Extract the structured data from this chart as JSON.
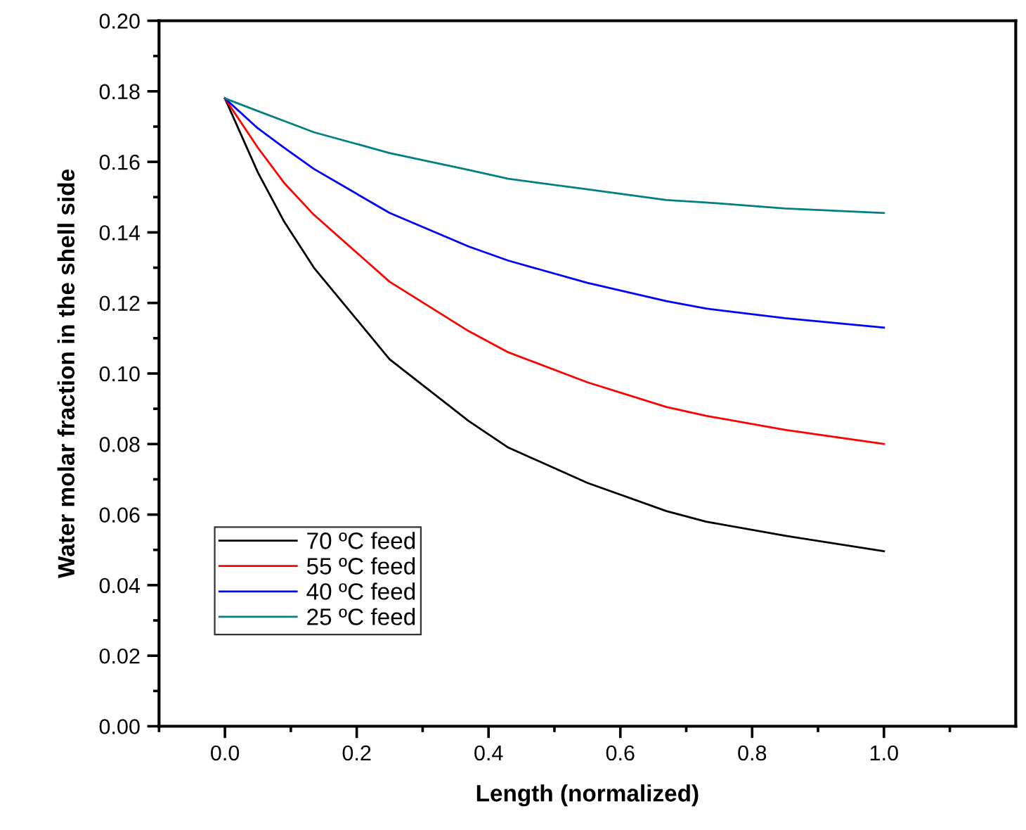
{
  "chart_data": {
    "type": "line",
    "xlabel": "Length (normalized)",
    "ylabel": "Water molar fraction in the shell side",
    "xlim": [
      -0.1,
      1.2
    ],
    "ylim": [
      0,
      0.2
    ],
    "xticks": [
      {
        "value": -0.1,
        "label": null
      },
      {
        "value": 0,
        "label": "0.0"
      },
      {
        "value": 0.1,
        "label": null
      },
      {
        "value": 0.2,
        "label": "0.2"
      },
      {
        "value": 0.3,
        "label": null
      },
      {
        "value": 0.4,
        "label": "0.4"
      },
      {
        "value": 0.5,
        "label": null
      },
      {
        "value": 0.6,
        "label": "0.6"
      },
      {
        "value": 0.7,
        "label": null
      },
      {
        "value": 0.8,
        "label": "0.8"
      },
      {
        "value": 0.9,
        "label": null
      },
      {
        "value": 1.0,
        "label": "1.0"
      },
      {
        "value": 1.1,
        "label": null
      }
    ],
    "yticks": [
      {
        "value": 0,
        "label": "0.00"
      },
      {
        "value": 0.01,
        "label": null
      },
      {
        "value": 0.02,
        "label": "0.02"
      },
      {
        "value": 0.03,
        "label": null
      },
      {
        "value": 0.04,
        "label": "0.04"
      },
      {
        "value": 0.05,
        "label": null
      },
      {
        "value": 0.06,
        "label": "0.06"
      },
      {
        "value": 0.07,
        "label": null
      },
      {
        "value": 0.08,
        "label": "0.08"
      },
      {
        "value": 0.09,
        "label": null
      },
      {
        "value": 0.1,
        "label": "0.10"
      },
      {
        "value": 0.11,
        "label": null
      },
      {
        "value": 0.12,
        "label": "0.12"
      },
      {
        "value": 0.13,
        "label": null
      },
      {
        "value": 0.14,
        "label": "0.14"
      },
      {
        "value": 0.15,
        "label": null
      },
      {
        "value": 0.16,
        "label": "0.16"
      },
      {
        "value": 0.17,
        "label": null
      },
      {
        "value": 0.18,
        "label": "0.18"
      },
      {
        "value": 0.19,
        "label": null
      },
      {
        "value": 0.2,
        "label": "0.20"
      }
    ],
    "grid": false,
    "legend": "bottom left",
    "marker": "none",
    "line_style": "solid",
    "series": [
      {
        "name": "70 ºC feed",
        "color": "#000000",
        "x": [
          0,
          0.05,
          0.09,
          0.135,
          0.25,
          0.37,
          0.43,
          0.55,
          0.67,
          0.73,
          0.85,
          1.0
        ],
        "values": [
          0.178,
          0.157,
          0.143,
          0.13,
          0.104,
          0.0865,
          0.079,
          0.069,
          0.061,
          0.058,
          0.054,
          0.0496
        ]
      },
      {
        "name": "55 ºC feed",
        "color": "#ff0000",
        "x": [
          0,
          0.05,
          0.09,
          0.135,
          0.25,
          0.37,
          0.43,
          0.55,
          0.67,
          0.73,
          0.85,
          1.0
        ],
        "values": [
          0.178,
          0.164,
          0.154,
          0.145,
          0.126,
          0.112,
          0.106,
          0.0975,
          0.0905,
          0.088,
          0.084,
          0.08
        ]
      },
      {
        "name": "40 ºC feed",
        "color": "#0000ff",
        "x": [
          0,
          0.05,
          0.09,
          0.135,
          0.25,
          0.37,
          0.43,
          0.55,
          0.67,
          0.73,
          0.85,
          1.0
        ],
        "values": [
          0.178,
          0.1695,
          0.164,
          0.158,
          0.1455,
          0.136,
          0.132,
          0.1257,
          0.1205,
          0.1184,
          0.1157,
          0.113
        ]
      },
      {
        "name": "25 ºC feed",
        "color": "#008080",
        "x": [
          0,
          0.05,
          0.09,
          0.135,
          0.25,
          0.37,
          0.43,
          0.55,
          0.67,
          0.73,
          0.85,
          1.0
        ],
        "values": [
          0.178,
          0.1744,
          0.1716,
          0.1684,
          0.1625,
          0.1577,
          0.1552,
          0.1522,
          0.1492,
          0.1485,
          0.1468,
          0.1455
        ]
      }
    ]
  }
}
